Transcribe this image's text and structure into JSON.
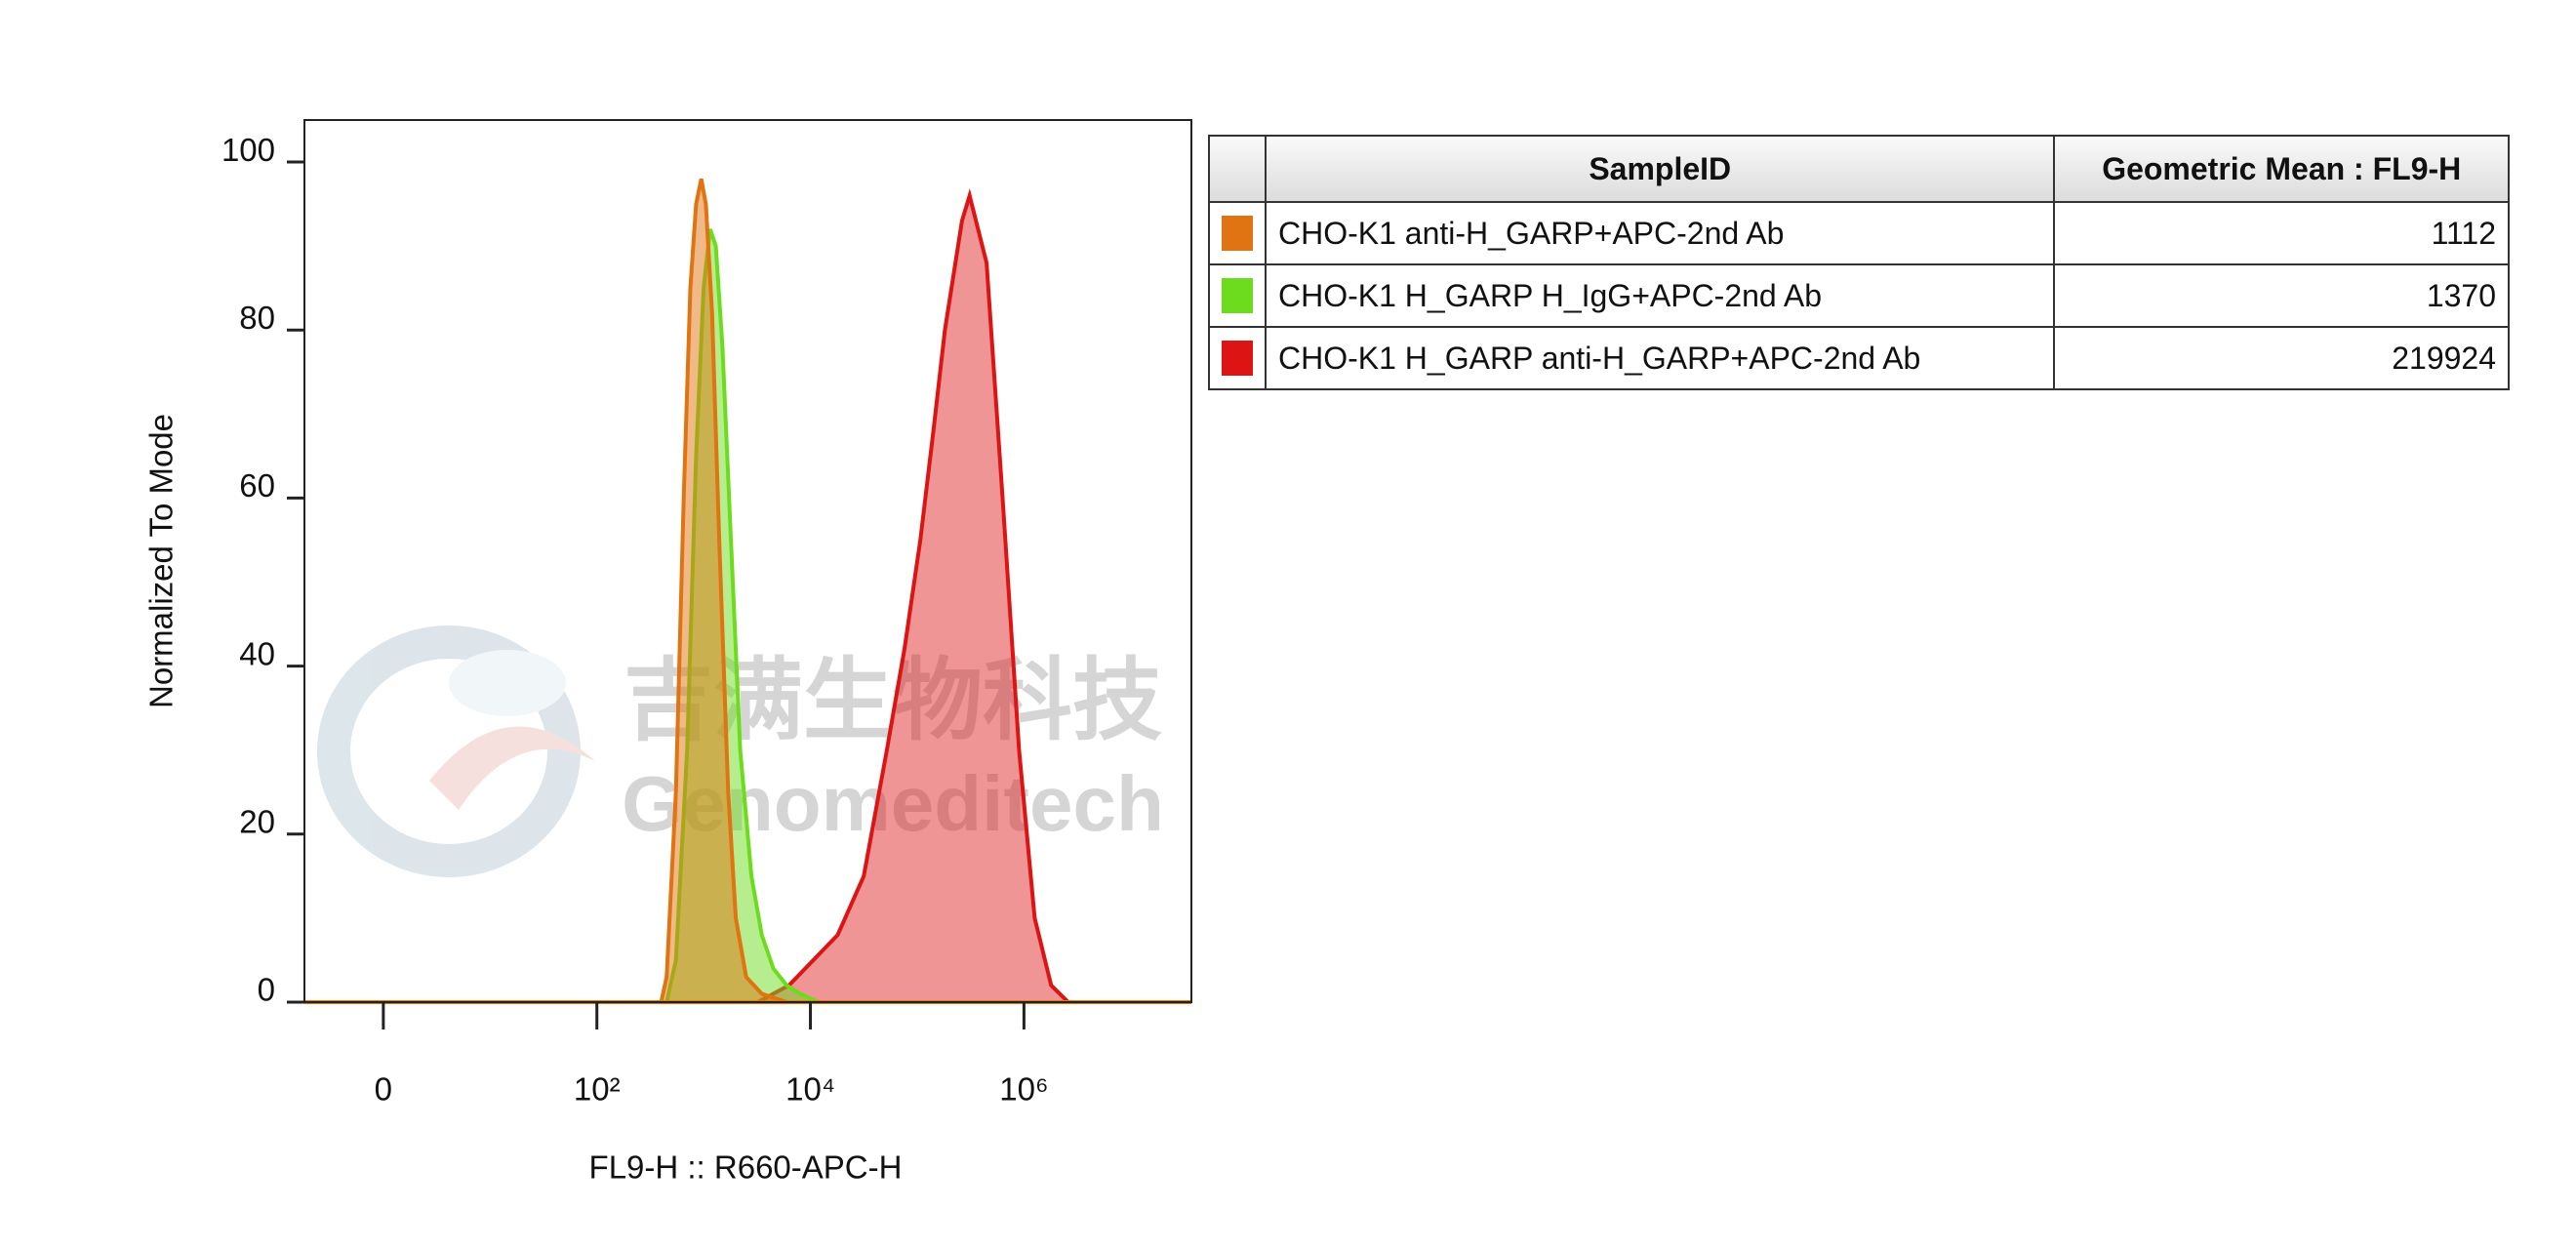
{
  "chart_data": {
    "type": "histogram-overlay",
    "xlabel": "FL9-H :: R660-APC-H",
    "ylabel": "Normalized To Mode",
    "xscale": "biex",
    "xlim": [
      -5.3,
      37000000
    ],
    "xticks": [
      0,
      {
        "value": 100,
        "label": "10²"
      },
      {
        "value": 10000,
        "label": "10⁴"
      },
      {
        "value": 1000000,
        "label": "10⁶"
      }
    ],
    "ylim": [
      0,
      105
    ],
    "yticks": [
      0,
      20,
      40,
      60,
      80,
      100
    ],
    "table_headers": [
      "SampleID",
      "Geometric Mean : FL9-H"
    ],
    "series": [
      {
        "name": "CHO-K1 anti-H_GARP+APC-2nd Ab",
        "color": "#e07412",
        "geo_mean": 1112,
        "x": [
          -5.3,
          400,
          450,
          550,
          650,
          750,
          850,
          950,
          1050,
          1200,
          1400,
          1700,
          2000,
          2500,
          3500,
          6000,
          37000000
        ],
        "values": [
          0,
          0,
          3,
          25,
          60,
          85,
          95,
          98,
          95,
          82,
          55,
          25,
          10,
          3,
          1,
          0,
          0
        ]
      },
      {
        "name": "CHO-K1 H_GARP H_IgG+APC-2nd  Ab",
        "color": "#6edc1e",
        "geo_mean": 1370,
        "x": [
          -5.3,
          450,
          550,
          700,
          850,
          1000,
          1150,
          1300,
          1500,
          1800,
          2200,
          2800,
          3500,
          4500,
          6000,
          8000,
          12000,
          37000000
        ],
        "values": [
          0,
          0,
          5,
          30,
          65,
          85,
          92,
          90,
          78,
          55,
          30,
          15,
          8,
          4,
          2,
          1,
          0,
          0
        ]
      },
      {
        "name": "CHO-K1 H_GARP anti-H_GARP+APC-2nd Ab",
        "color": "#dd1414",
        "geo_mean": 219924,
        "x": [
          -5.3,
          3200,
          4500,
          6300,
          18000,
          31600,
          52000,
          76000,
          107000,
          142000,
          182000,
          263000,
          310000,
          447000,
          631000,
          900000,
          1260000,
          1800000,
          2600000,
          37000000
        ],
        "values": [
          0,
          0,
          1,
          2,
          8,
          15,
          30,
          42,
          55,
          68,
          80,
          93,
          96,
          88,
          60,
          30,
          10,
          2,
          0,
          0
        ]
      }
    ]
  },
  "watermark": {
    "cn": "吉满生物科技",
    "en": "Genomeditech"
  }
}
